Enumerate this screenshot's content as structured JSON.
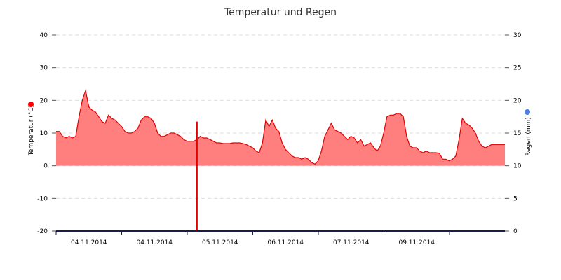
{
  "chart_data": {
    "type": "area",
    "title": "Temperatur und Regen",
    "grid": true,
    "legend": "none",
    "y_left": {
      "label": "Temperatur (°C)",
      "ylim": [
        -20,
        40
      ],
      "ticks": [
        "40",
        "30",
        "20",
        "10",
        "0",
        "-10",
        "-20"
      ],
      "marker_color": "#ff0000"
    },
    "y_right": {
      "label": "Regen (mm)",
      "ylim": [
        0,
        30
      ],
      "ticks": [
        "30",
        "25",
        "20",
        "15",
        "10",
        "5",
        "0"
      ],
      "marker_color": "#4d7ce6"
    },
    "x_tick_labels": [
      "04.11.2014",
      "04.11.2014",
      "05.11.2014",
      "06.11.2014",
      "07.11.2014",
      "09.11.2014"
    ],
    "series": [
      {
        "color": "#e00000",
        "fill": "#ff7f7f",
        "x": [
          0.0,
          0.05,
          0.1,
          0.15,
          0.2,
          0.25,
          0.3,
          0.35,
          0.4,
          0.45,
          0.5,
          0.55,
          0.6,
          0.65,
          0.7,
          0.75,
          0.8,
          0.85,
          0.9,
          0.95,
          1.0,
          1.05,
          1.1,
          1.15,
          1.2,
          1.25,
          1.3,
          1.35,
          1.4,
          1.45,
          1.5,
          1.55,
          1.6,
          1.65,
          1.7,
          1.75,
          1.8,
          1.85,
          1.9,
          1.95,
          2.0,
          2.05,
          2.1,
          2.15,
          2.2,
          2.25,
          2.3,
          2.35,
          2.4,
          2.45,
          2.5,
          2.55,
          2.6,
          2.65,
          2.7,
          2.75,
          2.8,
          2.85,
          2.9,
          2.95,
          3.0,
          3.05,
          3.1,
          3.15,
          3.2,
          3.25,
          3.3,
          3.35,
          3.4,
          3.45,
          3.5,
          3.55,
          3.6,
          3.65,
          3.7,
          3.75,
          3.8,
          3.85,
          3.9,
          3.95,
          4.0,
          4.05,
          4.1,
          4.15,
          4.2,
          4.25,
          4.3,
          4.35,
          4.4,
          4.45,
          4.5,
          4.55,
          4.6,
          4.65,
          4.7,
          4.75,
          4.8,
          4.85,
          4.9,
          4.95,
          5.0,
          5.05,
          5.1,
          5.15,
          5.2,
          5.25,
          5.3,
          5.35,
          5.4,
          5.45,
          5.5,
          5.55,
          5.6,
          5.65,
          5.7,
          5.75,
          5.8,
          5.85,
          5.9,
          5.95,
          6.0,
          6.05,
          6.1,
          6.15,
          6.2,
          6.25,
          6.3,
          6.35,
          6.4,
          6.45,
          6.5,
          6.55,
          6.6,
          6.65,
          6.7,
          6.75,
          6.8,
          6.85
        ],
        "values": [
          10.5,
          10.5,
          9.0,
          8.5,
          9.0,
          8.5,
          9.0,
          15.0,
          20.0,
          23.0,
          18.0,
          17.0,
          16.5,
          15.0,
          13.5,
          13.0,
          15.5,
          14.5,
          14.0,
          13.0,
          12.0,
          10.5,
          10.0,
          10.0,
          10.5,
          11.5,
          14.0,
          15.0,
          15.0,
          14.5,
          13.0,
          10.0,
          9.0,
          9.0,
          9.5,
          10.0,
          10.0,
          9.5,
          9.0,
          8.0,
          7.5,
          7.5,
          7.5,
          8.0,
          9.0,
          8.5,
          8.5,
          8.0,
          7.5,
          7.0,
          7.0,
          6.8,
          6.8,
          6.8,
          7.0,
          7.0,
          7.0,
          6.8,
          6.5,
          6.0,
          5.5,
          4.5,
          4.0,
          7.0,
          14.0,
          12.0,
          14.0,
          11.5,
          10.5,
          7.0,
          5.0,
          4.0,
          3.0,
          2.5,
          2.5,
          2.0,
          2.5,
          2.0,
          1.0,
          0.5,
          1.5,
          4.5,
          9.0,
          11.0,
          13.0,
          11.0,
          10.5,
          10.0,
          9.0,
          8.0,
          9.0,
          8.5,
          7.0,
          8.0,
          6.0,
          6.5,
          7.0,
          5.5,
          4.5,
          6.0,
          10.0,
          15.0,
          15.5,
          15.5,
          16.0,
          16.0,
          15.0,
          9.0,
          6.0,
          5.5,
          5.5,
          4.5,
          4.0,
          4.5,
          4.0,
          4.0,
          4.0,
          3.8,
          2.0,
          2.0,
          1.5,
          2.0,
          3.0,
          8.0,
          14.5,
          13.0,
          12.5,
          11.5,
          10.0,
          7.5,
          6.0,
          5.5,
          6.0,
          6.5,
          6.5,
          6.5,
          6.5,
          6.5
        ],
        "spike": {
          "x": 2.15,
          "values": [
            13.5,
            -20
          ]
        }
      }
    ]
  }
}
